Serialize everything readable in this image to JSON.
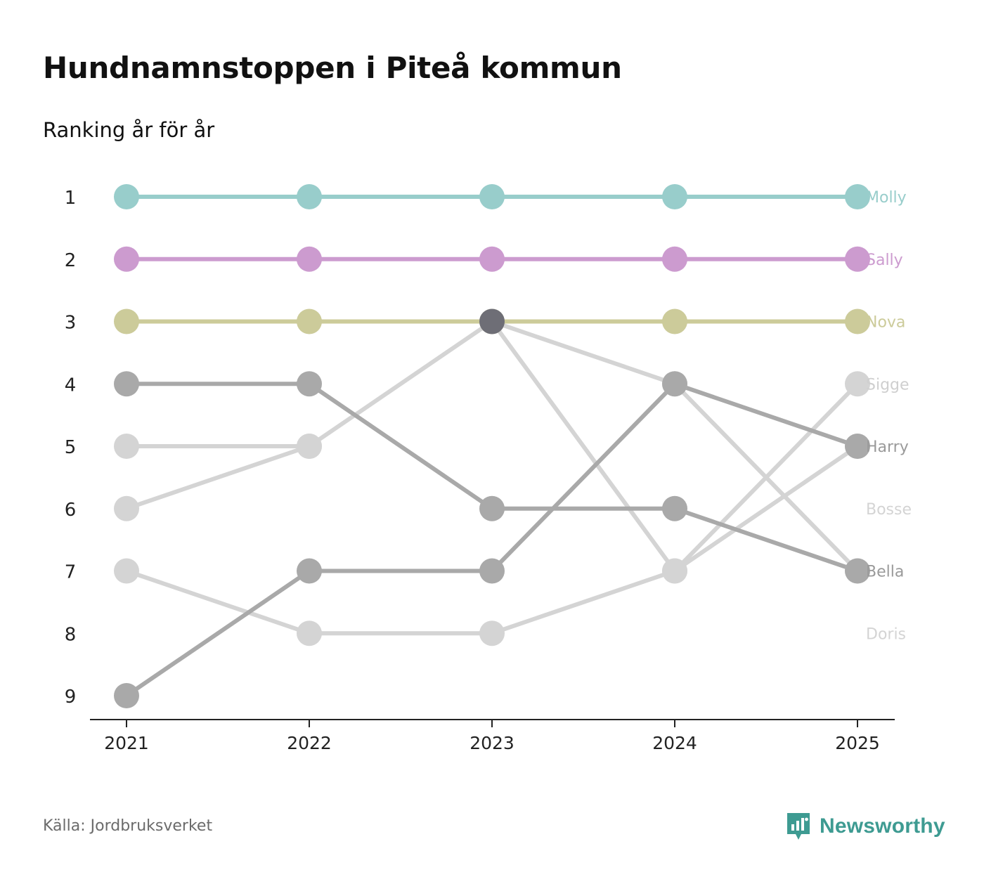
{
  "title": "Hundnamnstoppen i Piteå kommun",
  "subtitle": "Ranking år för år",
  "source": "Källa: Jordbruksverket",
  "brand": {
    "name": "Newsworthy",
    "icon": "newsworthy-logo-icon",
    "color": "#3e9b92"
  },
  "chart_data": {
    "type": "line",
    "title": "Hundnamnstoppen i Piteå kommun",
    "subtitle": "Ranking år för år",
    "xlabel": "",
    "ylabel": "",
    "x": [
      "2021",
      "2022",
      "2023",
      "2024",
      "2025"
    ],
    "y_ticks": [
      "1",
      "2",
      "3",
      "4",
      "5",
      "6",
      "7",
      "8",
      "9"
    ],
    "ylim": [
      1,
      9
    ],
    "y_inverted": true,
    "grid": false,
    "legend": "right-end labels",
    "series": [
      {
        "name": "Molly",
        "values": [
          1,
          1,
          1,
          1,
          1
        ],
        "color": "#98cdcb",
        "label_color": "#98cdcb"
      },
      {
        "name": "Sally",
        "values": [
          2,
          2,
          2,
          2,
          2
        ],
        "color": "#cc9bcf",
        "label_color": "#cc9bcf"
      },
      {
        "name": "Nova",
        "values": [
          3,
          3,
          3,
          3,
          3
        ],
        "color": "#cccb9a",
        "label_color": "#cccb9a"
      },
      {
        "name": "Sigge",
        "values": [
          6,
          5,
          3,
          7,
          4
        ],
        "color": "#d4d4d4",
        "label_color": "#cfcfcf"
      },
      {
        "name": "Harry",
        "values": [
          9,
          7,
          7,
          4,
          5
        ],
        "color": "#a9a9a9",
        "label_color": "#9a9a9a"
      },
      {
        "name": "Bosse",
        "values": [
          5,
          5,
          null,
          null,
          null
        ],
        "color": "#d4d4d4",
        "label_color": "#d4d4d4"
      },
      {
        "name": "Bella",
        "values": [
          4,
          4,
          6,
          6,
          7
        ],
        "color": "#a9a9a9",
        "label_color": "#9a9a9a"
      },
      {
        "name": "Doris",
        "values": [
          7,
          8,
          8,
          7,
          5
        ],
        "color": "#d4d4d4",
        "label_color": "#d4d4d4"
      },
      {
        "name": "",
        "values": [
          null,
          null,
          3,
          4,
          7
        ],
        "color": "#d4d4d4",
        "label_color": "#d4d4d4"
      }
    ],
    "highlight": {
      "x": "2023",
      "rank": 3,
      "color": "#6e6e76"
    },
    "end_labels": [
      {
        "rank": 1,
        "text": "Molly",
        "color": "#98cdcb"
      },
      {
        "rank": 2,
        "text": "Sally",
        "color": "#cc9bcf"
      },
      {
        "rank": 3,
        "text": "Nova",
        "color": "#cccb9a"
      },
      {
        "rank": 4,
        "text": "Sigge",
        "color": "#cfcfcf"
      },
      {
        "rank": 5,
        "text": "Harry",
        "color": "#9a9a9a"
      },
      {
        "rank": 6,
        "text": "Bosse",
        "color": "#d4d4d4"
      },
      {
        "rank": 7,
        "text": "Bella",
        "color": "#9a9a9a"
      },
      {
        "rank": 8,
        "text": "Doris",
        "color": "#d4d4d4"
      }
    ]
  }
}
